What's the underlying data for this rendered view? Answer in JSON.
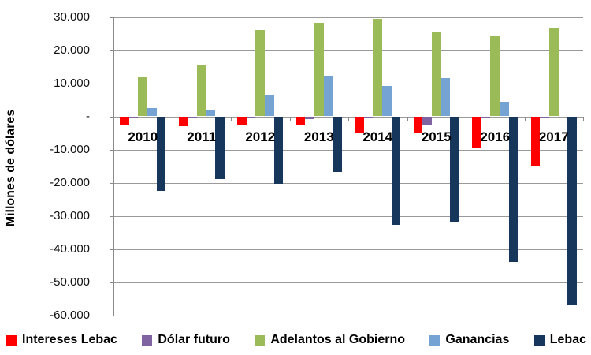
{
  "chart_data": {
    "type": "bar",
    "title": "",
    "ylabel": "Millones de dólares",
    "xlabel": "",
    "categories": [
      "2010",
      "2011",
      "2012",
      "2013",
      "2014",
      "2015",
      "2016",
      "2017"
    ],
    "series": [
      {
        "name": "Intereses Lebac",
        "color": "#FF0000",
        "values": [
          -2500,
          -3000,
          -2400,
          -2700,
          -4800,
          -5200,
          -9300,
          -14900
        ]
      },
      {
        "name": "Dólar futuro",
        "color": "#8064A2",
        "values": [
          -200,
          -200,
          -200,
          -800,
          -100,
          -2700,
          -400,
          -100
        ]
      },
      {
        "name": "Adelantos al Gobierno",
        "color": "#9BBB59",
        "values": [
          11700,
          15400,
          26000,
          28100,
          29300,
          25600,
          24200,
          26800
        ]
      },
      {
        "name": "Ganancias",
        "color": "#75A3D4",
        "values": [
          2600,
          2000,
          6500,
          12300,
          9200,
          11500,
          4400,
          0
        ]
      },
      {
        "name": "Lebac",
        "color": "#16365C",
        "values": [
          -22400,
          -18900,
          -20300,
          -16900,
          -32700,
          -31800,
          -44000,
          -57100
        ]
      }
    ],
    "ylim": [
      -60000,
      30000
    ],
    "ytick_interval": 10000,
    "ytick_labels": [
      "30.000",
      "20.000",
      "10.000",
      "-",
      "-10.000",
      "-20.000",
      "-30.000",
      "-40.000",
      "-50.000",
      "-60.000"
    ],
    "grid": true,
    "legend_position": "bottom"
  },
  "colors": {
    "gridline": "#9A9A9A",
    "axis": "#8A8A8A",
    "text": "#000000",
    "background": "#FFFFFF"
  }
}
